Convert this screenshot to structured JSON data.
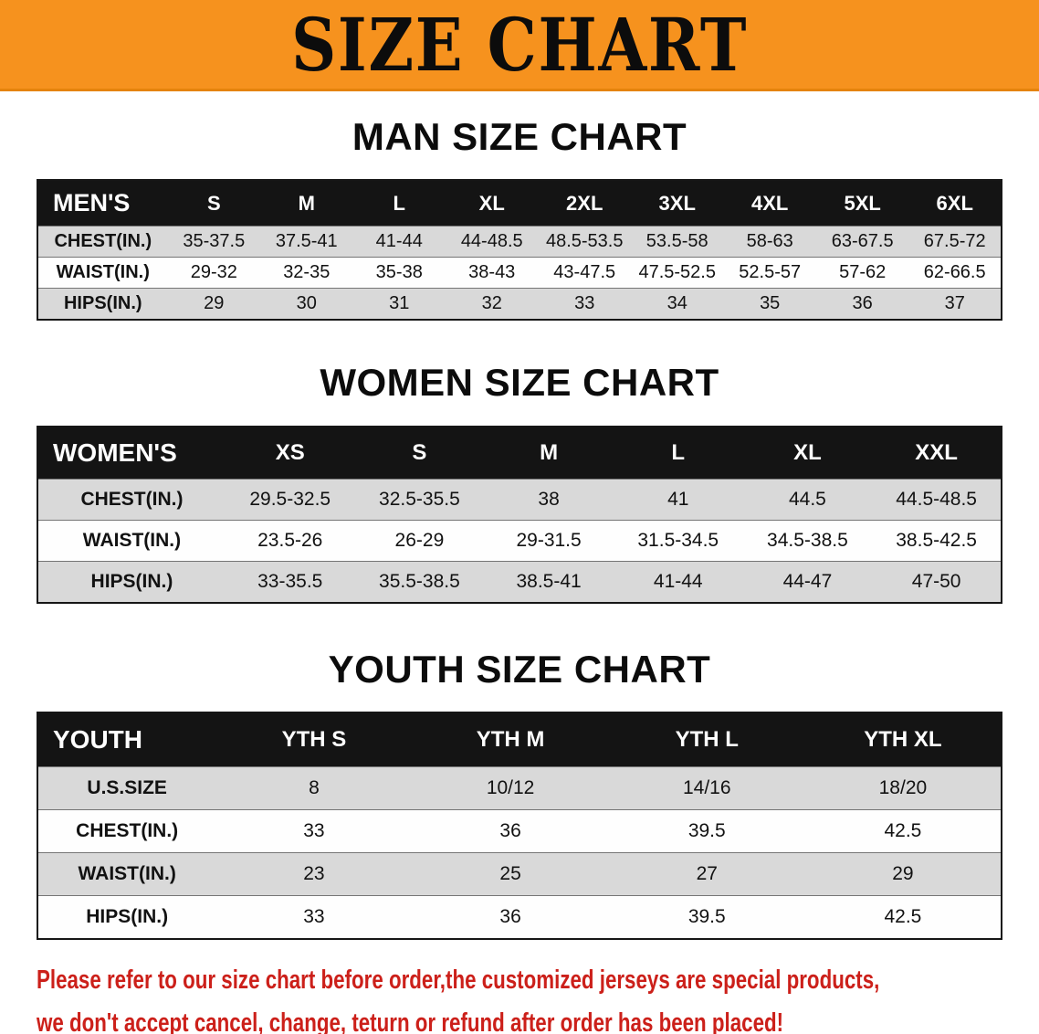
{
  "banner": {
    "title": "SIZE CHART"
  },
  "colors": {
    "banner_bg": "#f6921e",
    "header_bg": "#141414",
    "row_shade": "#d9d9d9",
    "footer_red": "#cc201a"
  },
  "sections": [
    {
      "title": "MAN SIZE CHART",
      "header": [
        "MEN'S",
        "S",
        "M",
        "L",
        "XL",
        "2XL",
        "3XL",
        "4XL",
        "5XL",
        "6XL"
      ],
      "rows": [
        [
          "CHEST(IN.)",
          "35-37.5",
          "37.5-41",
          "41-44",
          "44-48.5",
          "48.5-53.5",
          "53.5-58",
          "58-63",
          "63-67.5",
          "67.5-72"
        ],
        [
          "WAIST(IN.)",
          "29-32",
          "32-35",
          "35-38",
          "38-43",
          "43-47.5",
          "47.5-52.5",
          "52.5-57",
          "57-62",
          "62-66.5"
        ],
        [
          "HIPS(IN.)",
          "29",
          "30",
          "31",
          "32",
          "33",
          "34",
          "35",
          "36",
          "37"
        ]
      ]
    },
    {
      "title": "WOMEN SIZE CHART",
      "header": [
        "WOMEN'S",
        "XS",
        "S",
        "M",
        "L",
        "XL",
        "XXL"
      ],
      "rows": [
        [
          "CHEST(IN.)",
          "29.5-32.5",
          "32.5-35.5",
          "38",
          "41",
          "44.5",
          "44.5-48.5"
        ],
        [
          "WAIST(IN.)",
          "23.5-26",
          "26-29",
          "29-31.5",
          "31.5-34.5",
          "34.5-38.5",
          "38.5-42.5"
        ],
        [
          "HIPS(IN.)",
          "33-35.5",
          "35.5-38.5",
          "38.5-41",
          "41-44",
          "44-47",
          "47-50"
        ]
      ]
    },
    {
      "title": "YOUTH SIZE CHART",
      "header": [
        "YOUTH",
        "YTH S",
        "YTH M",
        "YTH L",
        "YTH XL"
      ],
      "rows": [
        [
          "U.S.SIZE",
          "8",
          "10/12",
          "14/16",
          "18/20"
        ],
        [
          "CHEST(IN.)",
          "33",
          "36",
          "39.5",
          "42.5"
        ],
        [
          "WAIST(IN.)",
          "23",
          "25",
          "27",
          "29"
        ],
        [
          "HIPS(IN.)",
          "33",
          "36",
          "39.5",
          "42.5"
        ]
      ]
    }
  ],
  "footer": {
    "line1": "Please refer to our size chart before order,the customized jerseys are special products,",
    "line2": "we don't accept cancel, change, teturn or refund after order has been placed!"
  }
}
